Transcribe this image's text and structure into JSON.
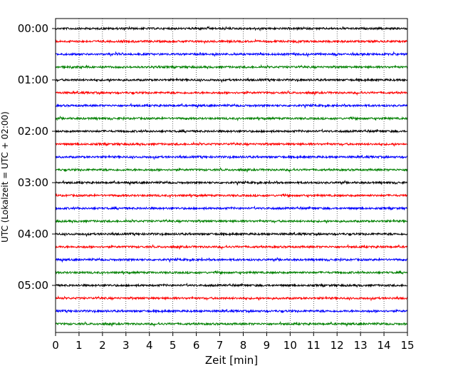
{
  "chart_data": {
    "type": "line",
    "title": "",
    "xlabel": "Zeit  [min]",
    "ylabel": "UTC (Lokalzeit = UTC + 02:00)",
    "xlim": [
      0,
      15
    ],
    "x_ticks": [
      0,
      1,
      2,
      3,
      4,
      5,
      6,
      7,
      8,
      9,
      10,
      11,
      12,
      13,
      14,
      15
    ],
    "y_tick_labels": [
      "00:00",
      "01:00",
      "02:00",
      "03:00",
      "04:00",
      "05:00"
    ],
    "grid": "vertical dotted lines at each minute",
    "row_interval_minutes": 15,
    "trace_colors": [
      "#000000",
      "#ff0000",
      "#0000ff",
      "#008000"
    ],
    "series": [
      {
        "start": "00:00"
      },
      {
        "start": "00:15"
      },
      {
        "start": "00:30"
      },
      {
        "start": "00:45"
      },
      {
        "start": "01:00"
      },
      {
        "start": "01:15"
      },
      {
        "start": "01:30"
      },
      {
        "start": "01:45"
      },
      {
        "start": "02:00"
      },
      {
        "start": "02:15"
      },
      {
        "start": "02:30"
      },
      {
        "start": "02:45"
      },
      {
        "start": "03:00"
      },
      {
        "start": "03:15"
      },
      {
        "start": "03:30"
      },
      {
        "start": "03:45"
      },
      {
        "start": "04:00"
      },
      {
        "start": "04:15"
      },
      {
        "start": "04:30"
      },
      {
        "start": "04:45"
      },
      {
        "start": "05:00"
      },
      {
        "start": "05:15"
      },
      {
        "start": "05:30"
      },
      {
        "start": "05:45"
      }
    ]
  }
}
